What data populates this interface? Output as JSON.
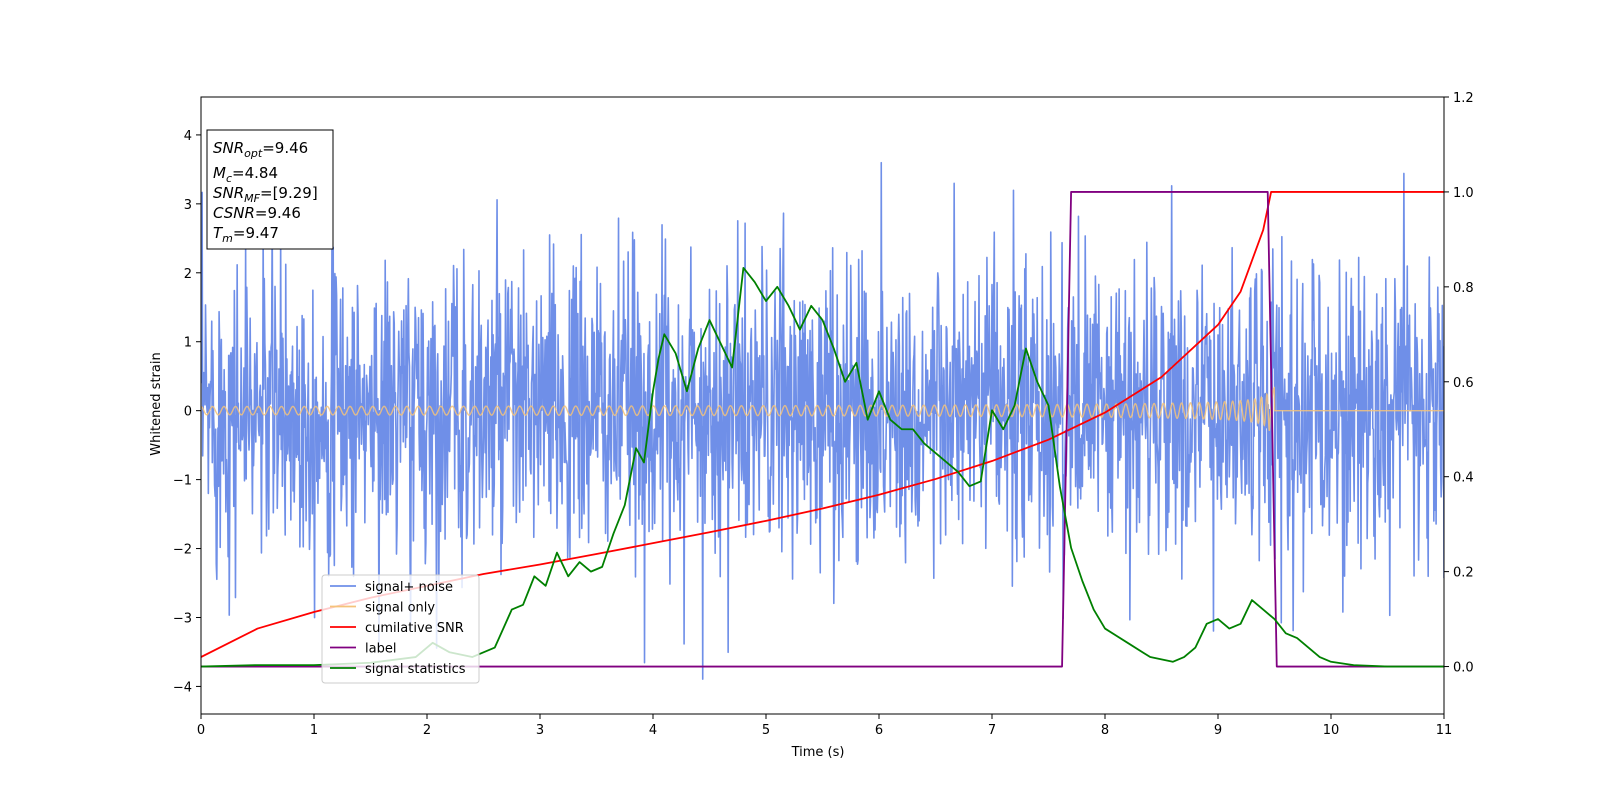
{
  "chart_data": {
    "type": "line",
    "title": "",
    "xlabel": "Time (s)",
    "ylabel": "Whitened strain",
    "xlim": [
      0,
      11
    ],
    "ylim": [
      -4.4,
      4.55
    ],
    "y2lim": [
      -0.1,
      1.2
    ],
    "grid": false,
    "legend_position": "lower-left",
    "x_ticks": [
      "0",
      "1",
      "2",
      "3",
      "4",
      "5",
      "6",
      "7",
      "8",
      "9",
      "10",
      "11"
    ],
    "y_ticks": [
      "−4",
      "−3",
      "−2",
      "−1",
      "0",
      "1",
      "2",
      "3",
      "4"
    ],
    "y2_ticks": [
      "0.0",
      "0.2",
      "0.4",
      "0.6",
      "0.8",
      "1.0",
      "1.2"
    ],
    "info_box": [
      {
        "main": "SNR",
        "sub": "opt",
        "value": "=9.46"
      },
      {
        "main": "M",
        "sub": "c",
        "value": "=4.84"
      },
      {
        "main": "SNR",
        "sub": "MF",
        "value": "=[9.29]"
      },
      {
        "main": "CSNR",
        "sub": "",
        "value": "=9.46"
      },
      {
        "main": "T",
        "sub": "m",
        "value": "=9.47"
      }
    ],
    "series": [
      {
        "name": "signal+ noise",
        "color": "#6f8fe8",
        "axis": "left",
        "kind": "noise",
        "noise_sigma": 1.1,
        "samples_per_second": 200
      },
      {
        "name": "signal only",
        "color": "#f5c37a",
        "axis": "left",
        "kind": "chirp",
        "start_amplitude": 0.06,
        "peak_amplitude": 0.62,
        "merger_time": 9.47,
        "end_time": 9.5
      },
      {
        "name": "cumilative SNR",
        "color": "#ff0000",
        "axis": "right",
        "x": [
          0,
          0.5,
          1,
          1.5,
          2,
          2.5,
          3,
          3.5,
          4,
          4.5,
          5,
          5.5,
          6,
          6.5,
          7,
          7.5,
          8,
          8.5,
          9,
          9.2,
          9.4,
          9.47,
          9.5,
          11
        ],
        "y": [
          0.02,
          0.08,
          0.115,
          0.145,
          0.17,
          0.195,
          0.215,
          0.237,
          0.26,
          0.283,
          0.307,
          0.333,
          0.362,
          0.395,
          0.433,
          0.478,
          0.535,
          0.61,
          0.72,
          0.79,
          0.92,
          1.0,
          1.0,
          1.0
        ]
      },
      {
        "name": "label",
        "color": "#800080",
        "axis": "right",
        "x": [
          0,
          7.62,
          7.7,
          9.44,
          9.52,
          11
        ],
        "y": [
          0,
          0,
          1,
          1,
          0,
          0
        ]
      },
      {
        "name": "signal statistics",
        "color": "#008000",
        "axis": "right",
        "x": [
          0,
          0.5,
          1,
          1.5,
          1.9,
          2.05,
          2.2,
          2.4,
          2.6,
          2.75,
          2.85,
          2.95,
          3.05,
          3.15,
          3.25,
          3.35,
          3.45,
          3.55,
          3.65,
          3.75,
          3.85,
          3.92,
          4.0,
          4.05,
          4.1,
          4.2,
          4.3,
          4.4,
          4.5,
          4.6,
          4.7,
          4.8,
          4.9,
          5.0,
          5.1,
          5.2,
          5.3,
          5.4,
          5.5,
          5.6,
          5.7,
          5.8,
          5.9,
          6.0,
          6.1,
          6.2,
          6.3,
          6.4,
          6.5,
          6.6,
          6.7,
          6.8,
          6.9,
          7.0,
          7.1,
          7.2,
          7.3,
          7.4,
          7.5,
          7.6,
          7.7,
          7.8,
          7.9,
          8.0,
          8.2,
          8.4,
          8.6,
          8.7,
          8.8,
          8.9,
          9.0,
          9.1,
          9.2,
          9.3,
          9.4,
          9.5,
          9.6,
          9.7,
          9.8,
          9.9,
          10.0,
          10.2,
          10.5,
          11
        ],
        "y": [
          0.0,
          0.003,
          0.003,
          0.008,
          0.02,
          0.05,
          0.03,
          0.02,
          0.04,
          0.12,
          0.13,
          0.19,
          0.17,
          0.24,
          0.19,
          0.22,
          0.2,
          0.21,
          0.28,
          0.34,
          0.46,
          0.43,
          0.58,
          0.65,
          0.7,
          0.66,
          0.58,
          0.67,
          0.73,
          0.68,
          0.63,
          0.84,
          0.81,
          0.77,
          0.8,
          0.76,
          0.71,
          0.76,
          0.73,
          0.67,
          0.6,
          0.64,
          0.52,
          0.58,
          0.52,
          0.5,
          0.5,
          0.47,
          0.45,
          0.43,
          0.41,
          0.38,
          0.39,
          0.54,
          0.5,
          0.55,
          0.67,
          0.6,
          0.55,
          0.38,
          0.25,
          0.18,
          0.12,
          0.08,
          0.05,
          0.02,
          0.01,
          0.02,
          0.04,
          0.09,
          0.1,
          0.08,
          0.09,
          0.14,
          0.12,
          0.1,
          0.07,
          0.06,
          0.04,
          0.02,
          0.01,
          0.003,
          0.0,
          0.0
        ]
      }
    ]
  }
}
